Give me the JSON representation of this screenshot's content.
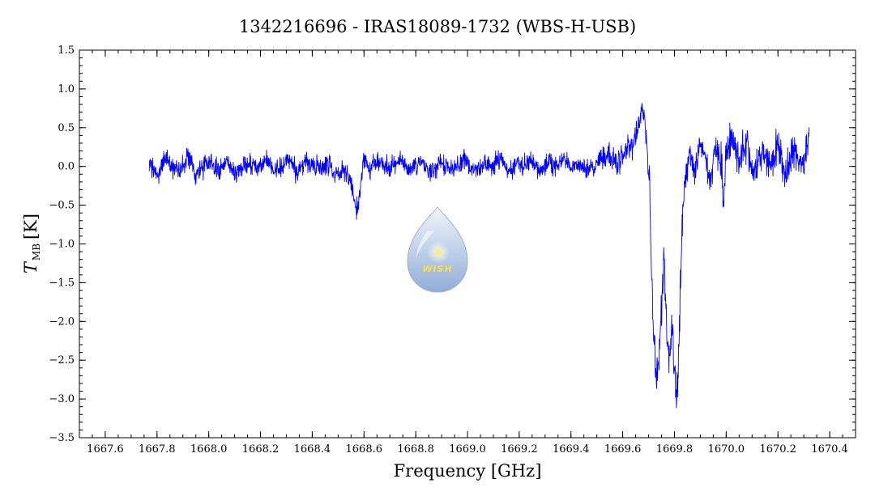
{
  "chart_data": {
    "type": "line",
    "title": "1342216696 - IRAS18089-1732 (WBS-H-USB)",
    "xlabel": "Frequency [GHz]",
    "ylabel_main": "T",
    "ylabel_sub": "MB",
    "ylabel_unit": "[K]",
    "xlim": [
      1667.5,
      1670.5
    ],
    "ylim": [
      -3.5,
      1.5
    ],
    "xticks": [
      1667.6,
      1667.8,
      1668.0,
      1668.2,
      1668.4,
      1668.6,
      1668.8,
      1669.0,
      1669.2,
      1669.4,
      1669.6,
      1669.8,
      1670.0,
      1670.2,
      1670.4
    ],
    "xtick_labels": [
      "1667.6",
      "1667.8",
      "1668.0",
      "1668.2",
      "1668.4",
      "1668.6",
      "1668.8",
      "1669.0",
      "1669.2",
      "1669.4",
      "1669.6",
      "1669.8",
      "1670.0",
      "1670.2",
      "1670.4"
    ],
    "yticks": [
      1.5,
      1.0,
      0.5,
      0.0,
      -0.5,
      -1.0,
      -1.5,
      -2.0,
      -2.5,
      -3.0,
      -3.5
    ],
    "ytick_labels": [
      "1.5",
      "1.0",
      "0.5",
      "0.0",
      "−0.5",
      "−1.0",
      "−1.5",
      "−2.0",
      "−2.5",
      "−3.0",
      "−3.5"
    ],
    "grid": false,
    "series_color": "#0000ff",
    "series": [
      {
        "x": [
          1667.77,
          1667.8,
          1667.83,
          1667.86,
          1667.89,
          1667.92,
          1667.95,
          1667.98,
          1668.01,
          1668.04,
          1668.07,
          1668.1,
          1668.13,
          1668.16,
          1668.19,
          1668.22,
          1668.25,
          1668.28,
          1668.31,
          1668.34,
          1668.37,
          1668.4,
          1668.43,
          1668.46,
          1668.49,
          1668.52,
          1668.55,
          1668.565,
          1668.575,
          1668.585,
          1668.6,
          1668.62,
          1668.65,
          1668.68,
          1668.71,
          1668.74,
          1668.77,
          1668.8,
          1668.83,
          1668.86,
          1668.89,
          1668.92,
          1668.95,
          1668.98,
          1669.01,
          1669.04,
          1669.07,
          1669.1,
          1669.13,
          1669.16,
          1669.19,
          1669.22,
          1669.25,
          1669.28,
          1669.31,
          1669.34,
          1669.37,
          1669.4,
          1669.43,
          1669.46,
          1669.49,
          1669.52,
          1669.55,
          1669.58,
          1669.61,
          1669.64,
          1669.66,
          1669.675,
          1669.685,
          1669.695,
          1669.705,
          1669.71,
          1669.72,
          1669.73,
          1669.74,
          1669.75,
          1669.76,
          1669.77,
          1669.78,
          1669.79,
          1669.8,
          1669.81,
          1669.82,
          1669.83,
          1669.845,
          1669.86,
          1669.88,
          1669.9,
          1669.92,
          1669.94,
          1669.96,
          1669.98,
          1669.99,
          1670.0,
          1670.02,
          1670.05,
          1670.08,
          1670.11,
          1670.14,
          1670.17,
          1670.2,
          1670.23,
          1670.26,
          1670.29,
          1670.32
        ],
        "y": [
          0.05,
          -0.15,
          0.1,
          0.0,
          -0.05,
          0.15,
          -0.1,
          0.0,
          0.05,
          -0.05,
          0.1,
          -0.1,
          0.0,
          0.05,
          -0.05,
          0.1,
          -0.05,
          0.0,
          0.1,
          -0.1,
          0.05,
          0.0,
          -0.05,
          0.05,
          -0.1,
          -0.05,
          -0.2,
          -0.45,
          -0.55,
          -0.3,
          0.1,
          0.0,
          0.05,
          -0.05,
          0.0,
          0.1,
          -0.05,
          0.0,
          0.05,
          -0.1,
          0.05,
          0.0,
          -0.05,
          0.1,
          0.0,
          -0.05,
          0.05,
          0.0,
          0.1,
          -0.05,
          0.05,
          0.0,
          0.1,
          -0.05,
          0.05,
          0.0,
          0.1,
          0.0,
          0.05,
          -0.05,
          0.0,
          0.1,
          0.15,
          0.0,
          0.2,
          0.3,
          0.5,
          0.8,
          0.6,
          0.2,
          -0.3,
          -1.2,
          -2.3,
          -2.7,
          -2.4,
          -1.8,
          -1.2,
          -2.2,
          -2.5,
          -2.1,
          -2.7,
          -3.0,
          -2.0,
          -0.6,
          -0.1,
          0.2,
          -0.1,
          0.3,
          0.1,
          -0.2,
          0.2,
          0.1,
          -0.5,
          0.2,
          0.4,
          0.1,
          0.3,
          -0.1,
          0.2,
          0.0,
          0.3,
          -0.1,
          0.2,
          0.0,
          0.3
        ]
      }
    ]
  },
  "logo": {
    "text": "WISH",
    "colors": {
      "drop_top": "#eef4fb",
      "drop_bottom": "#7f9fd0",
      "star": "#f8ef80"
    }
  }
}
